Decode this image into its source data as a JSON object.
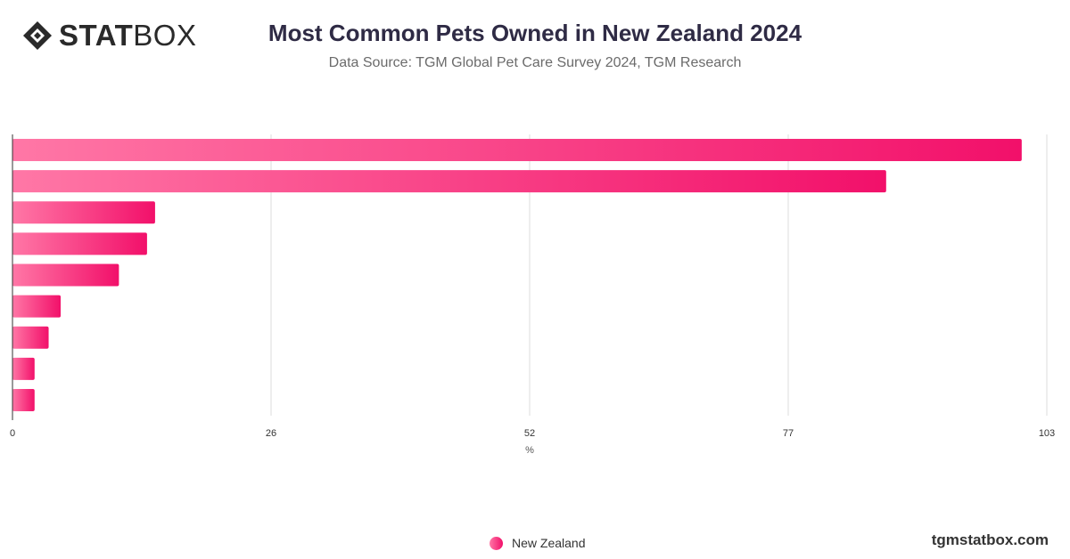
{
  "header": {
    "logo_bold": "STAT",
    "logo_light": "BOX",
    "title": "Most Common Pets Owned in New Zealand 2024",
    "subtitle": "Data Source: TGM Global Pet Care Survey 2024, TGM Research"
  },
  "footer": {
    "brand": "tgmstatbox.com"
  },
  "colors": {
    "bar_start": "#ff77a6",
    "bar_end": "#f2106a",
    "grid": "#dddddd",
    "axis": "#333333",
    "title": "#2f2b45"
  },
  "chart_data": {
    "type": "bar",
    "orientation": "horizontal",
    "categories": [
      "",
      "",
      "",
      "",
      "",
      "",
      "",
      "",
      ""
    ],
    "series": [
      {
        "name": "New Zealand",
        "values": [
          100.5,
          87,
          14.2,
          13.4,
          10.6,
          4.8,
          3.6,
          2.2,
          2.2
        ]
      }
    ],
    "x_ticks": [
      "0",
      "26",
      "52",
      "77",
      "103"
    ],
    "xlim": [
      0,
      103
    ],
    "xlabel": "%",
    "ylabel": "",
    "grid": true,
    "legend_position": "bottom-center"
  }
}
